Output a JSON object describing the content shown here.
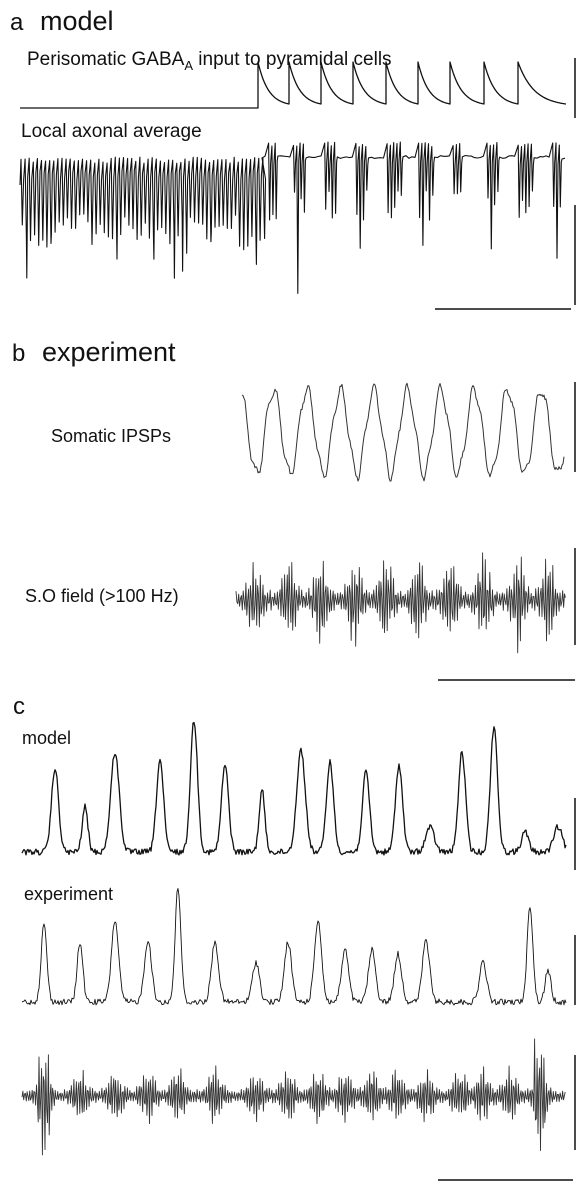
{
  "panels": {
    "a": {
      "letter": "a",
      "title": "model",
      "input_label_main": "Perisomatic GABA",
      "input_label_sub": "A",
      "input_label_rest": " input to pyramidal cells",
      "axonal_label": "Local axonal average"
    },
    "b": {
      "letter": "b",
      "title": "experiment",
      "ipsp_label": "Somatic IPSPs",
      "field_label": "S.O field (>100 Hz)"
    },
    "c": {
      "letter": "c",
      "model_label": "model",
      "experiment_label": "experiment"
    }
  },
  "colors": {
    "trace": "#111111",
    "trace_light": "#333333",
    "background": "#ffffff"
  }
}
